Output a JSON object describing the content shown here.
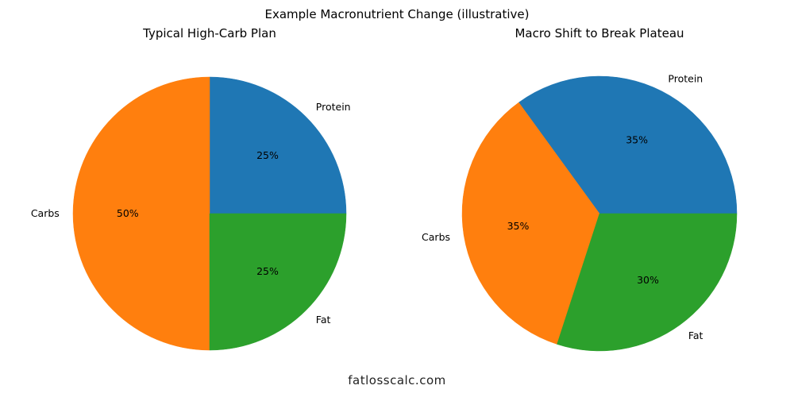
{
  "figure": {
    "suptitle": "Example Macronutrient Change (illustrative)",
    "footer": "fatlosscalc.com"
  },
  "colors": {
    "Protein": "#1f77b4",
    "Carbs": "#ff7f0e",
    "Fat": "#2ca02c"
  },
  "chart_data": [
    {
      "type": "pie",
      "title": "Typical High-Carb Plan",
      "categories": [
        "Protein",
        "Carbs",
        "Fat"
      ],
      "values": [
        25,
        50,
        25
      ],
      "labels_pct": [
        "25%",
        "50%",
        "25%"
      ],
      "startangle": 0,
      "direction": "counterclockwise",
      "colors": [
        "#1f77b4",
        "#ff7f0e",
        "#2ca02c"
      ]
    },
    {
      "type": "pie",
      "title": "Macro Shift to Break Plateau",
      "categories": [
        "Protein",
        "Carbs",
        "Fat"
      ],
      "values": [
        35,
        35,
        30
      ],
      "labels_pct": [
        "35%",
        "35%",
        "30%"
      ],
      "startangle": 0,
      "direction": "counterclockwise",
      "colors": [
        "#1f77b4",
        "#ff7f0e",
        "#2ca02c"
      ]
    }
  ]
}
